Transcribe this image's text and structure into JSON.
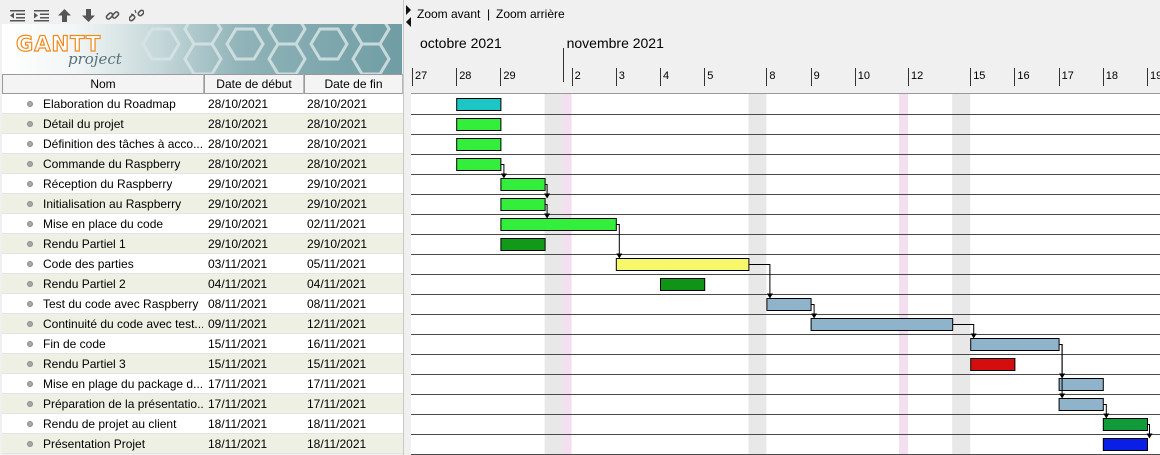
{
  "toolbar": {
    "icons": [
      "outdent-icon",
      "indent-icon",
      "move-up-icon",
      "move-down-icon",
      "link-icon",
      "unlink-icon"
    ]
  },
  "logo": {
    "text_main": "GANTT",
    "text_sub": "project"
  },
  "table": {
    "col_name": "Nom",
    "col_start": "Date de début",
    "col_end": "Date de fin",
    "tasks": [
      {
        "name": "Elaboration du Roadmap",
        "start": "28/10/2021",
        "end": "28/10/2021",
        "bar_start": "2021-10-28",
        "bar_end": "2021-10-28",
        "color": "#1cc6c6"
      },
      {
        "name": "Détail du projet",
        "start": "28/10/2021",
        "end": "28/10/2021",
        "bar_start": "2021-10-28",
        "bar_end": "2021-10-28",
        "color": "#33ee3a"
      },
      {
        "name": "Définition des tâches à acco...",
        "start": "28/10/2021",
        "end": "28/10/2021",
        "bar_start": "2021-10-28",
        "bar_end": "2021-10-28",
        "color": "#33ee3a"
      },
      {
        "name": "Commande du Raspberry",
        "start": "28/10/2021",
        "end": "28/10/2021",
        "bar_start": "2021-10-28",
        "bar_end": "2021-10-28",
        "color": "#33ee3a"
      },
      {
        "name": "Réception du Raspberry",
        "start": "29/10/2021",
        "end": "29/10/2021",
        "bar_start": "2021-10-29",
        "bar_end": "2021-10-29",
        "color": "#33ee3a"
      },
      {
        "name": "Initialisation au Raspberry",
        "start": "29/10/2021",
        "end": "29/10/2021",
        "bar_start": "2021-10-29",
        "bar_end": "2021-10-29",
        "color": "#33ee3a"
      },
      {
        "name": "Mise en place du code",
        "start": "29/10/2021",
        "end": "02/11/2021",
        "bar_start": "2021-10-29",
        "bar_end": "2021-11-02",
        "color": "#33ee3a"
      },
      {
        "name": "Rendu Partiel 1",
        "start": "29/10/2021",
        "end": "29/10/2021",
        "bar_start": "2021-10-29",
        "bar_end": "2021-10-29",
        "color": "#109a18"
      },
      {
        "name": "Code des parties",
        "start": "03/11/2021",
        "end": "05/11/2021",
        "bar_start": "2021-11-03",
        "bar_end": "2021-11-05",
        "color": "#f6f76a"
      },
      {
        "name": "Rendu Partiel 2",
        "start": "04/11/2021",
        "end": "04/11/2021",
        "bar_start": "2021-11-04",
        "bar_end": "2021-11-04",
        "color": "#0f9418"
      },
      {
        "name": "Test du code avec Raspberry",
        "start": "08/11/2021",
        "end": "08/11/2021",
        "bar_start": "2021-11-08",
        "bar_end": "2021-11-08",
        "color": "#8eb3cb"
      },
      {
        "name": "Continuité du code avec test...",
        "start": "09/11/2021",
        "end": "12/11/2021",
        "bar_start": "2021-11-09",
        "bar_end": "2021-11-12",
        "color": "#8eb3cb"
      },
      {
        "name": "Fin de code",
        "start": "15/11/2021",
        "end": "16/11/2021",
        "bar_start": "2021-11-15",
        "bar_end": "2021-11-16",
        "color": "#8eb3cb"
      },
      {
        "name": "Rendu Partiel 3",
        "start": "15/11/2021",
        "end": "15/11/2021",
        "bar_start": "2021-11-15",
        "bar_end": "2021-11-15",
        "color": "#d40e0e"
      },
      {
        "name": "Mise en plage du package d...",
        "start": "17/11/2021",
        "end": "17/11/2021",
        "bar_start": "2021-11-17",
        "bar_end": "2021-11-17",
        "color": "#8eb3cb"
      },
      {
        "name": "Préparation de la présentatio...",
        "start": "17/11/2021",
        "end": "17/11/2021",
        "bar_start": "2021-11-17",
        "bar_end": "2021-11-17",
        "color": "#8eb3cb"
      },
      {
        "name": "Rendu de projet au client",
        "start": "18/11/2021",
        "end": "18/11/2021",
        "bar_start": "2021-11-18",
        "bar_end": "2021-11-18",
        "color": "#119a3a"
      },
      {
        "name": "Présentation Projet",
        "start": "18/11/2021",
        "end": "18/11/2021",
        "bar_start": "2021-11-18",
        "bar_end": "2021-11-18",
        "color": "#0a1fe6"
      }
    ]
  },
  "zoom": {
    "zoom_in": "Zoom avant",
    "separator": "|",
    "zoom_out": "Zoom arrière"
  },
  "timeline": {
    "months": [
      {
        "label": "octobre 2021",
        "date": "2021-10-27"
      },
      {
        "label": "novembre 2021",
        "date": "2021-11-01"
      }
    ],
    "day_ticks": [
      {
        "label": "27",
        "date": "2021-10-27"
      },
      {
        "label": "28",
        "date": "2021-10-28"
      },
      {
        "label": "29",
        "date": "2021-10-29"
      },
      {
        "label": "2",
        "date": "2021-11-02"
      },
      {
        "label": "3",
        "date": "2021-11-03"
      },
      {
        "label": "4",
        "date": "2021-11-04"
      },
      {
        "label": "5",
        "date": "2021-11-05"
      },
      {
        "label": "8",
        "date": "2021-11-08"
      },
      {
        "label": "9",
        "date": "2021-11-09"
      },
      {
        "label": "10",
        "date": "2021-11-10"
      },
      {
        "label": "12",
        "date": "2021-11-12"
      },
      {
        "label": "15",
        "date": "2021-11-15"
      },
      {
        "label": "16",
        "date": "2021-11-16"
      },
      {
        "label": "17",
        "date": "2021-11-17"
      },
      {
        "label": "18",
        "date": "2021-11-18"
      },
      {
        "label": "19",
        "date": "2021-11-19"
      }
    ],
    "weekends": [
      [
        "2021-10-30",
        "2021-10-31"
      ],
      [
        "2021-11-06",
        "2021-11-07"
      ],
      [
        "2021-11-13",
        "2021-11-14"
      ]
    ],
    "holidays": [
      "2021-11-01",
      "2021-11-11"
    ]
  },
  "dependencies": [
    [
      3,
      4
    ],
    [
      4,
      5
    ],
    [
      5,
      6
    ],
    [
      6,
      8
    ],
    [
      8,
      10
    ],
    [
      10,
      11
    ],
    [
      11,
      12
    ],
    [
      12,
      14
    ],
    [
      12,
      15
    ],
    [
      15,
      16
    ],
    [
      16,
      17
    ]
  ],
  "colors": {
    "grid_line": "#4a4a4a",
    "weekend": "#e8e8e8",
    "holiday": "#f3dfef",
    "row_alt": "#eef0e4",
    "bar_border": "#000000"
  }
}
